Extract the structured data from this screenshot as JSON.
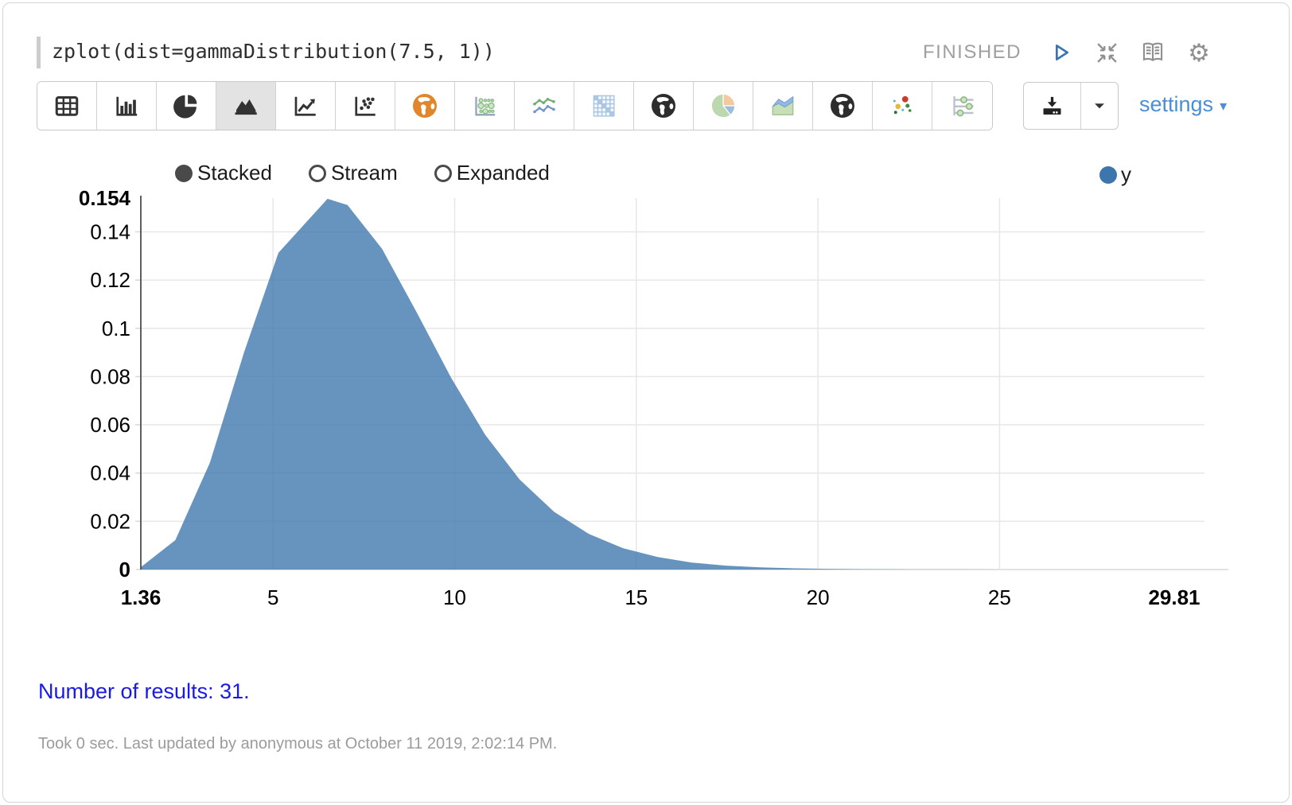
{
  "paragraph": {
    "title": "zplot(dist=gammaDistribution(7.5, 1))",
    "status": "FINISHED",
    "header_icons": [
      "play-icon",
      "compress-icon",
      "book-icon",
      "gear-icon"
    ]
  },
  "toolbar": {
    "chart_types": [
      {
        "name": "table",
        "active": false
      },
      {
        "name": "bar-chart",
        "active": false
      },
      {
        "name": "pie-chart",
        "active": false
      },
      {
        "name": "area-chart",
        "active": true
      },
      {
        "name": "line-chart",
        "active": false
      },
      {
        "name": "scatter-plot",
        "active": false
      },
      {
        "name": "globe-orange",
        "active": false
      },
      {
        "name": "bubble-chart",
        "active": false
      },
      {
        "name": "multi-line-chart",
        "active": false
      },
      {
        "name": "matrix-chart",
        "active": false
      },
      {
        "name": "globe-dark-1",
        "active": false
      },
      {
        "name": "pie-chart-colored",
        "active": false
      },
      {
        "name": "stacked-area-colored",
        "active": false
      },
      {
        "name": "globe-dark-2",
        "active": false
      },
      {
        "name": "scatter-colored",
        "active": false
      },
      {
        "name": "sliders",
        "active": false
      }
    ],
    "export_icons": [
      "download-icon",
      "caret-down-icon"
    ],
    "settings_label": "settings"
  },
  "chart_controls": {
    "options": [
      {
        "label": "Stacked",
        "selected": true
      },
      {
        "label": "Stream",
        "selected": false
      },
      {
        "label": "Expanded",
        "selected": false
      }
    ]
  },
  "legend": {
    "series": [
      {
        "label": "y",
        "color": "#3c76ad"
      }
    ]
  },
  "chart_data": {
    "type": "area",
    "title": "",
    "xlabel": "",
    "ylabel": "",
    "grid": true,
    "legend_position": "top-right",
    "xlim": [
      1.36,
      29.81
    ],
    "ylim": [
      0,
      0.154
    ],
    "x_tick_labels": [
      "1.36",
      "5",
      "10",
      "15",
      "20",
      "25",
      "29.81"
    ],
    "y_tick_labels": [
      "0",
      "0.02",
      "0.04",
      "0.06",
      "0.08",
      "0.1",
      "0.12",
      "0.14",
      "0.154"
    ],
    "series": [
      {
        "name": "y",
        "fill_color": "#3c76ad",
        "fill_opacity": 0.78,
        "x": [
          1.36,
          2.31,
          3.26,
          4.21,
          5.15,
          6.5,
          7.05,
          8.0,
          8.95,
          9.9,
          10.84,
          11.79,
          12.74,
          13.69,
          14.64,
          15.59,
          16.53,
          17.48,
          18.43,
          19.38,
          20.33,
          21.28,
          22.22,
          23.17,
          24.12,
          25.07,
          26.02,
          26.97,
          27.91,
          28.86,
          29.81
        ],
        "y": [
          0.001,
          0.0122,
          0.0443,
          0.0904,
          0.1313,
          0.1537,
          0.1511,
          0.133,
          0.1067,
          0.0796,
          0.0559,
          0.0373,
          0.0239,
          0.0148,
          0.0088,
          0.0052,
          0.0029,
          0.0016,
          0.0009,
          0.0005,
          0.00025,
          0.00013,
          7e-05,
          3e-05,
          2e-05,
          1e-05,
          5e-06,
          2e-06,
          1e-06,
          0.0,
          0.0
        ]
      }
    ]
  },
  "footer": {
    "result_count_text": "Number of results: 31.",
    "status_line": "Took 0 sec. Last updated by anonymous at October 11 2019, 2:02:14 PM."
  }
}
